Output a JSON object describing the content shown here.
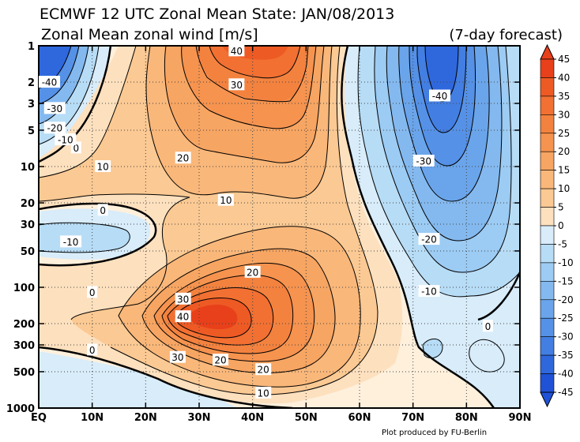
{
  "header": {
    "title": "ECMWF 12 UTC Zonal Mean State: JAN/08/2013",
    "subtitle": "Zonal Mean zonal wind [m/s]",
    "forecast": "(7-day forecast)"
  },
  "credit": "Plot produced by FU-Berlin",
  "chart_data": {
    "type": "contour",
    "x_ticks": [
      "EQ",
      "10N",
      "20N",
      "30N",
      "40N",
      "50N",
      "60N",
      "70N",
      "80N",
      "90N"
    ],
    "x_values": [
      0,
      10,
      20,
      30,
      40,
      50,
      60,
      70,
      80,
      90
    ],
    "y_ticks": [
      "1",
      "2",
      "3",
      "5",
      "10",
      "20",
      "30",
      "50",
      "100",
      "200",
      "300",
      "500",
      "1000"
    ],
    "y_values": [
      1,
      2,
      3,
      5,
      10,
      20,
      30,
      50,
      100,
      200,
      300,
      500,
      1000
    ],
    "y_scale": "log",
    "y_inverted": true,
    "xlim": [
      0,
      90
    ],
    "ylim": [
      1000,
      1
    ],
    "grid": "dotted",
    "colorbar": {
      "levels": [
        "45",
        "40",
        "35",
        "30",
        "25",
        "20",
        "15",
        "10",
        "5",
        "0",
        "-5",
        "-10",
        "-15",
        "-20",
        "-25",
        "-30",
        "-35",
        "-40",
        "-45"
      ],
      "values": [
        45,
        40,
        35,
        30,
        25,
        20,
        15,
        10,
        5,
        0,
        -5,
        -10,
        -15,
        -20,
        -25,
        -30,
        -35,
        -40,
        -45
      ],
      "colors": [
        "#e8401a",
        "#ee5a24",
        "#f17032",
        "#f3823f",
        "#f5934f",
        "#f7a562",
        "#f9b77a",
        "#fbc993",
        "#fde0be",
        "#fff0dc",
        "#d8ecfa",
        "#b7dcf6",
        "#9ccbf3",
        "#84b9ef",
        "#6aa5eb",
        "#5591e6",
        "#437ee2",
        "#2f68dd",
        "#1f52d6"
      ]
    },
    "features": [
      {
        "kind": "max",
        "label": "40",
        "lat": 37,
        "p": 1.1,
        "value": 40
      },
      {
        "kind": "max",
        "label": "40",
        "lat": 29,
        "p": 185,
        "value": 40
      },
      {
        "kind": "min",
        "label": "-40",
        "lat": 75,
        "p": 2.6,
        "value": -40
      },
      {
        "kind": "min",
        "label": "-40",
        "lat": 2,
        "p": 2,
        "value": -40
      },
      {
        "kind": "min",
        "label": "-10",
        "lat": 6,
        "p": 42,
        "value": -10
      }
    ],
    "contour_labels": [
      {
        "text": "40",
        "lat": 37,
        "p": 1.1
      },
      {
        "text": "30",
        "lat": 37,
        "p": 2.1
      },
      {
        "text": "20",
        "lat": 27,
        "p": 8.5
      },
      {
        "text": "10",
        "lat": 35,
        "p": 19
      },
      {
        "text": "20",
        "lat": 40,
        "p": 75
      },
      {
        "text": "30",
        "lat": 27,
        "p": 125
      },
      {
        "text": "40",
        "lat": 27,
        "p": 175
      },
      {
        "text": "30",
        "lat": 26,
        "p": 380
      },
      {
        "text": "20",
        "lat": 34,
        "p": 400
      },
      {
        "text": "20",
        "lat": 42,
        "p": 480
      },
      {
        "text": "10",
        "lat": 42,
        "p": 750
      },
      {
        "text": "10",
        "lat": 12,
        "p": 10
      },
      {
        "text": "0",
        "lat": 12,
        "p": 23
      },
      {
        "text": "0",
        "lat": 10,
        "p": 110
      },
      {
        "text": "0",
        "lat": 10,
        "p": 330
      },
      {
        "text": "0",
        "lat": 7,
        "p": 7
      },
      {
        "text": "-10",
        "lat": 5,
        "p": 6
      },
      {
        "text": "-20",
        "lat": 3,
        "p": 4.8
      },
      {
        "text": "-30",
        "lat": 3,
        "p": 3.3
      },
      {
        "text": "-40",
        "lat": 2,
        "p": 2
      },
      {
        "text": "-10",
        "lat": 6,
        "p": 42
      },
      {
        "text": "-40",
        "lat": 75,
        "p": 2.6
      },
      {
        "text": "-30",
        "lat": 72,
        "p": 9
      },
      {
        "text": "-20",
        "lat": 73,
        "p": 40
      },
      {
        "text": "-10",
        "lat": 73,
        "p": 108
      },
      {
        "text": "0",
        "lat": 84,
        "p": 210
      }
    ]
  }
}
